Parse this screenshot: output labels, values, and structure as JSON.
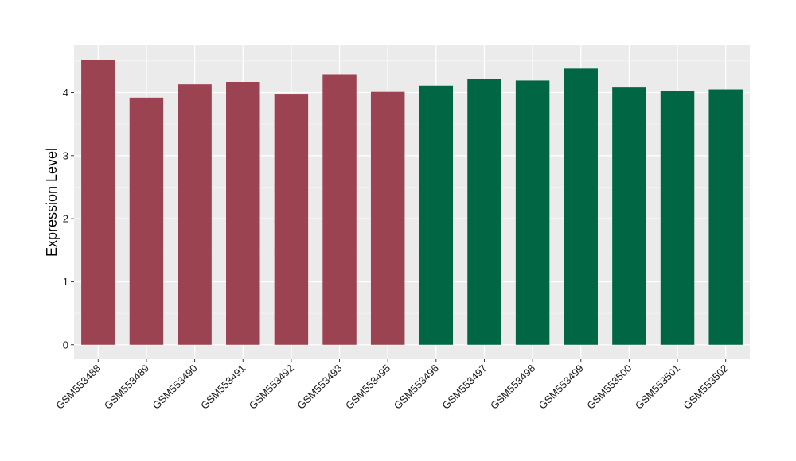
{
  "chart_data": {
    "type": "bar",
    "title": "",
    "xlabel": "",
    "ylabel": "Expression Level",
    "ylim": [
      -0.23,
      4.75
    ],
    "yticks": [
      0,
      1,
      2,
      3,
      4
    ],
    "grid": true,
    "background": "#ebebeb",
    "categories": [
      "GSM553488",
      "GSM553489",
      "GSM553490",
      "GSM553491",
      "GSM553492",
      "GSM553493",
      "GSM553495",
      "GSM553496",
      "GSM553497",
      "GSM553498",
      "GSM553499",
      "GSM553500",
      "GSM553501",
      "GSM553502"
    ],
    "values": [
      4.52,
      3.92,
      4.13,
      4.17,
      3.98,
      4.29,
      4.01,
      4.11,
      4.22,
      4.19,
      4.38,
      4.08,
      4.03,
      4.05
    ],
    "bar_colors": [
      "#9b4350",
      "#9b4350",
      "#9b4350",
      "#9b4350",
      "#9b4350",
      "#9b4350",
      "#9b4350",
      "#006644",
      "#006644",
      "#006644",
      "#006644",
      "#006644",
      "#006644",
      "#006644"
    ]
  }
}
